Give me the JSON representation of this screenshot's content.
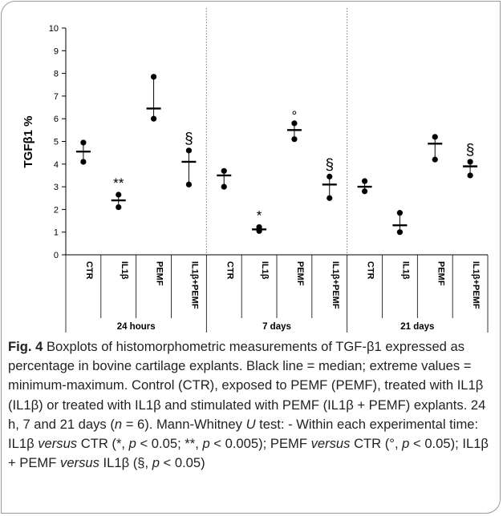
{
  "chart_data": {
    "type": "boxplot",
    "ylabel": "TGFβ1 %",
    "ylim": [
      0,
      10
    ],
    "yticks": [
      0,
      1,
      2,
      3,
      4,
      5,
      6,
      7,
      8,
      9,
      10
    ],
    "categories": [
      "CTR",
      "IL1β",
      "PEMF",
      "IL1β+PEMF",
      "CTR",
      "IL1β",
      "PEMF",
      "IL1β+PEMF",
      "CTR",
      "IL1β",
      "PEMF",
      "IL1β+PEMF"
    ],
    "groups": [
      {
        "label": "24 hours",
        "start": 0,
        "end": 3
      },
      {
        "label": "7 days",
        "start": 4,
        "end": 7
      },
      {
        "label": "21 days",
        "start": 8,
        "end": 11
      }
    ],
    "boxes": [
      {
        "min": 4.1,
        "median": 4.55,
        "max": 4.95,
        "mark": ""
      },
      {
        "min": 2.1,
        "median": 2.4,
        "max": 2.65,
        "mark": "**"
      },
      {
        "min": 6.0,
        "median": 6.45,
        "max": 7.85,
        "mark": ""
      },
      {
        "min": 3.1,
        "median": 4.1,
        "max": 4.6,
        "mark": "§"
      },
      {
        "min": 3.0,
        "median": 3.5,
        "max": 3.7,
        "mark": ""
      },
      {
        "min": 1.05,
        "median": 1.12,
        "max": 1.22,
        "mark": "*"
      },
      {
        "min": 5.1,
        "median": 5.5,
        "max": 5.8,
        "mark": "°"
      },
      {
        "min": 2.5,
        "median": 3.1,
        "max": 3.45,
        "mark": "§"
      },
      {
        "min": 2.8,
        "median": 3.0,
        "max": 3.25,
        "mark": ""
      },
      {
        "min": 1.0,
        "median": 1.3,
        "max": 1.85,
        "mark": ""
      },
      {
        "min": 4.2,
        "median": 4.9,
        "max": 5.2,
        "mark": ""
      },
      {
        "min": 3.5,
        "median": 3.9,
        "max": 4.1,
        "mark": "§"
      }
    ],
    "group_separators": "dotted"
  },
  "caption": {
    "label": "Fig. 4",
    "text_1": " Boxplots of histomorphometric measurements of TGF-β1 expressed as percentage in bovine cartilage explants. Black line = median; extreme values = minimum-maximum. Control (CTR), exposed to PEMF (PEMF), treated with IL1β (IL1β) or treated with IL1β and stimulated with PEMF (IL1β + PEMF) explants. 24 h, 7 and 21 days (",
    "n_var": "n",
    "text_2": " = 6). Mann-Whitney ",
    "u_var": "U",
    "text_3": " test: - Within each experimental time: IL1β ",
    "versus_1": "versus",
    "text_4": " CTR (*, ",
    "p_1": "p",
    "text_5": " < 0.05; **, ",
    "p_2": "p",
    "text_6": " < 0.005); PEMF ",
    "versus_2": "versus",
    "text_7": " CTR (°, ",
    "p_3": "p",
    "text_8": " < 0.05); IL1β + PEMF ",
    "versus_3": "versus",
    "text_9": " IL1β (§, ",
    "p_4": "p",
    "text_10": " < 0.05)"
  }
}
